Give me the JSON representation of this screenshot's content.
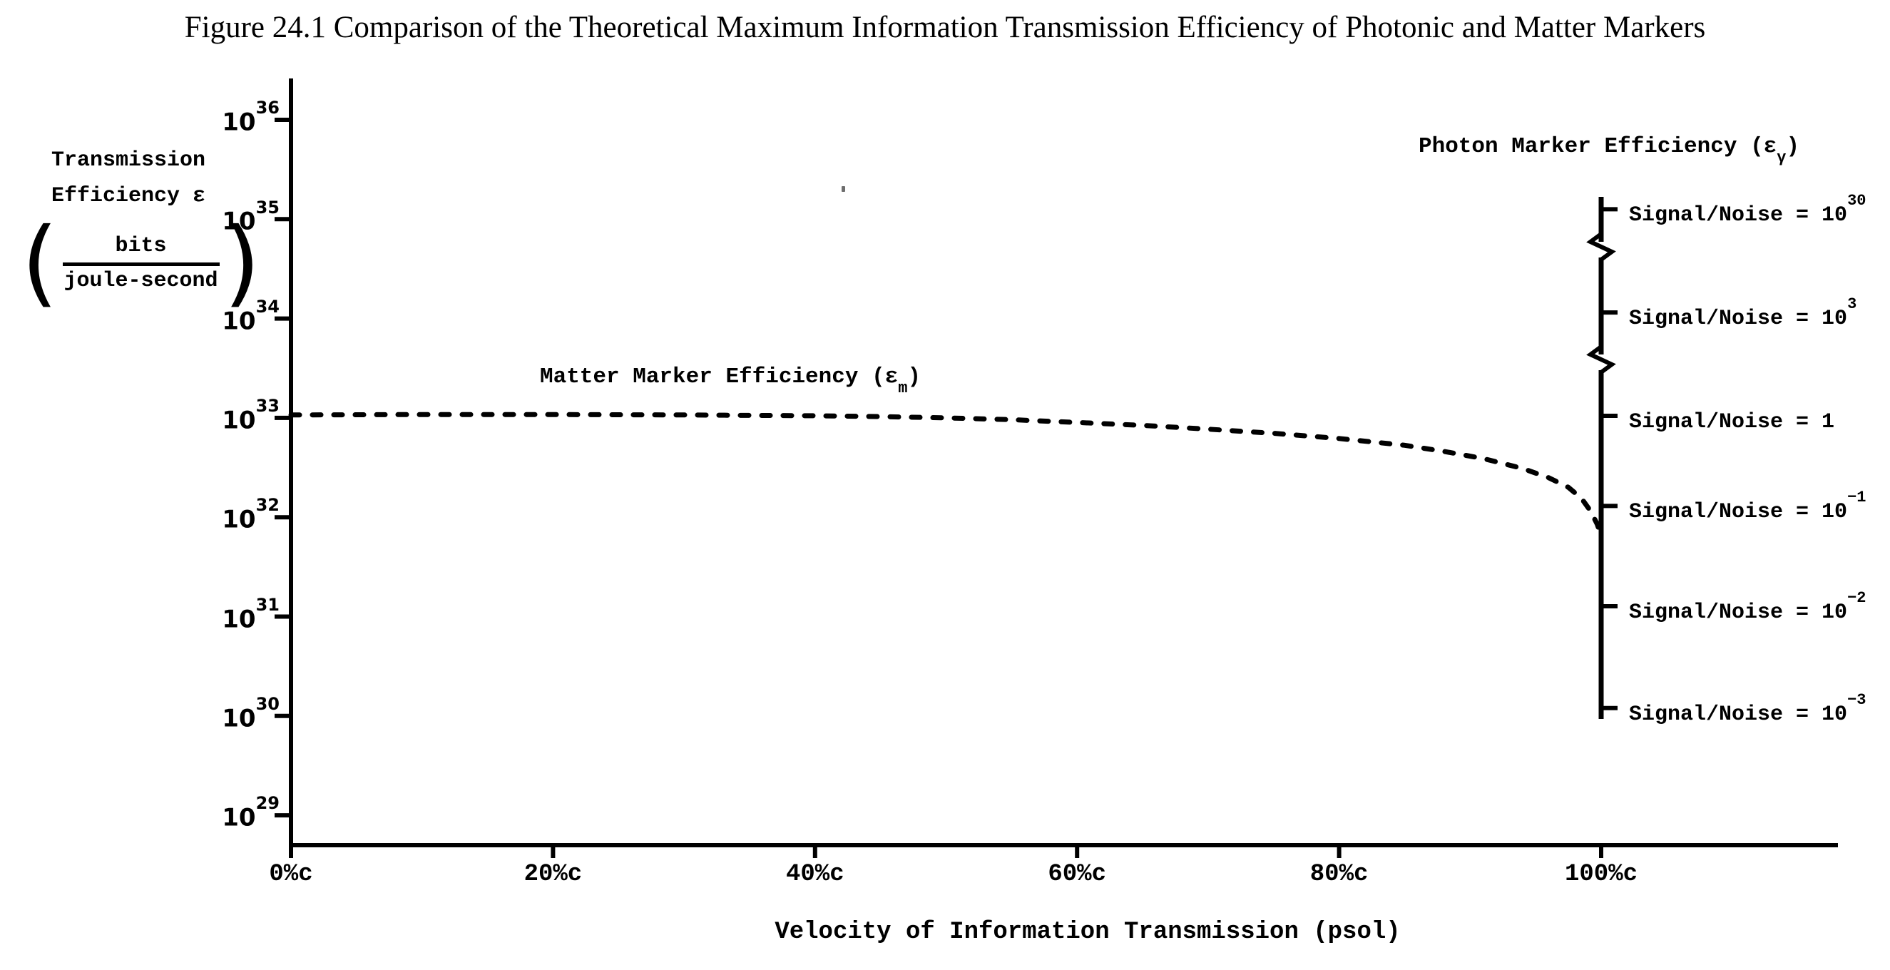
{
  "colors": {
    "ink": "#000000",
    "background": "#ffffff"
  },
  "chart_data": {
    "type": "line",
    "title": "Figure 24.1 Comparison of the Theoretical Maximum Information Transmission Efficiency of Photonic and Matter Markers",
    "x_axis": {
      "label": "Velocity of Information Transmission (psol)",
      "ticks": [
        "0%c",
        "20%c",
        "40%c",
        "60%c",
        "80%c",
        "100%c"
      ],
      "tick_values": [
        0,
        20,
        40,
        60,
        80,
        100
      ],
      "range_percent_c": [
        0,
        118
      ]
    },
    "y_axis": {
      "label_line1": "Transmission",
      "label_line2": "Efficiency ε",
      "unit_numerator": "bits",
      "unit_denominator": "joule-second",
      "scale": "log",
      "ticks": [
        {
          "base": "10",
          "exp": "36",
          "value": 1e+36
        },
        {
          "base": "10",
          "exp": "35",
          "value": 1e+35
        },
        {
          "base": "10",
          "exp": "34",
          "value": 1e+34
        },
        {
          "base": "10",
          "exp": "33",
          "value": 1e+33
        },
        {
          "base": "10",
          "exp": "32",
          "value": 1e+32
        },
        {
          "base": "10",
          "exp": "31",
          "value": 1e+31
        },
        {
          "base": "10",
          "exp": "30",
          "value": 1e+30
        },
        {
          "base": "10",
          "exp": "29",
          "value": 1e+29
        }
      ]
    },
    "series": [
      {
        "name_text": "Matter Marker Efficiency (ε",
        "name_sub": "m",
        "name_suffix": ")",
        "line_style": "dashed",
        "points_units": [
          "velocity percent of c",
          "efficiency bits/joule-second"
        ],
        "points": [
          [
            0,
            1.07e+33
          ],
          [
            5,
            1.075e+33
          ],
          [
            10,
            1.08e+33
          ],
          [
            15,
            1.08e+33
          ],
          [
            20,
            1.08e+33
          ],
          [
            25,
            1.075e+33
          ],
          [
            30,
            1.07e+33
          ],
          [
            35,
            1.06e+33
          ],
          [
            40,
            1.05e+33
          ],
          [
            45,
            1.03e+33
          ],
          [
            50,
            1e+33
          ],
          [
            55,
            9.6e+32
          ],
          [
            60,
            9e+32
          ],
          [
            65,
            8.4e+32
          ],
          [
            70,
            7.7e+32
          ],
          [
            75,
            7e+32
          ],
          [
            80,
            6.2e+32
          ],
          [
            85,
            5.3e+32
          ],
          [
            88,
            4.6e+32
          ],
          [
            91,
            3.9e+32
          ],
          [
            94,
            3.1e+32
          ],
          [
            96,
            2.5e+32
          ],
          [
            97.5,
            2e+32
          ],
          [
            98.5,
            1.55e+32
          ],
          [
            99.2,
            1.15e+32
          ],
          [
            99.7,
            8.5e+31
          ],
          [
            100,
            6.5e+31
          ]
        ]
      }
    ],
    "photon_axis": {
      "title_text": "Photon Marker Efficiency (ε",
      "title_sub": "γ",
      "title_suffix": ")",
      "position_percent_c": 100,
      "has_scale_breaks_after_tick_index": [
        0,
        1
      ],
      "ticks": [
        {
          "label_prefix": "Signal/Noise = 10",
          "exp": "30",
          "efficiency": 1.26e+35
        },
        {
          "label_prefix": "Signal/Noise = 10",
          "exp": "3",
          "efficiency": 1.15e+34
        },
        {
          "label_prefix": "Signal/Noise = 1",
          "exp": "",
          "efficiency": 1.05e+33
        },
        {
          "label_prefix": "Signal/Noise = 10",
          "exp": "−1",
          "efficiency": 1.3e+32
        },
        {
          "label_prefix": "Signal/Noise = 10",
          "exp": "−2",
          "efficiency": 1.27e+31
        },
        {
          "label_prefix": "Signal/Noise = 10",
          "exp": "−3",
          "efficiency": 1.2e+30
        }
      ]
    }
  }
}
